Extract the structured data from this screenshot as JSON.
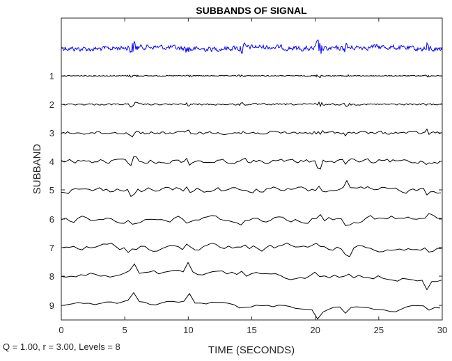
{
  "chart_data": {
    "type": "line",
    "title": "SUBBANDS OF SIGNAL",
    "xlabel": "TIME (SECONDS)",
    "ylabel": "SUBBAND",
    "xlim": [
      0,
      30
    ],
    "x_ticks": [
      0,
      5,
      10,
      15,
      20,
      25,
      30
    ],
    "grid": false,
    "legend": "none",
    "y_category_labels": [
      "",
      "1",
      "2",
      "3",
      "4",
      "5",
      "6",
      "7",
      "8",
      "9"
    ],
    "series": [
      {
        "color": "#0000ff",
        "amplitude_level": 0.55
      },
      {
        "color": "#000000",
        "amplitude_level": 0.03
      },
      {
        "color": "#000000",
        "amplitude_level": 0.06
      },
      {
        "color": "#000000",
        "amplitude_level": 0.12
      },
      {
        "color": "#000000",
        "amplitude_level": 0.2
      },
      {
        "color": "#000000",
        "amplitude_level": 0.3
      },
      {
        "color": "#000000",
        "amplitude_level": 0.45
      },
      {
        "color": "#000000",
        "amplitude_level": 0.6
      },
      {
        "color": "#000000",
        "amplitude_level": 0.8
      },
      {
        "color": "#000000",
        "amplitude_level": 1.0
      }
    ],
    "transient_times": [
      5.5,
      5.8,
      10.0,
      14.2,
      20.2,
      20.4,
      22.5,
      28.8
    ],
    "parameters_note": "Q = 1.00, r = 3.00, Levels = 8"
  }
}
